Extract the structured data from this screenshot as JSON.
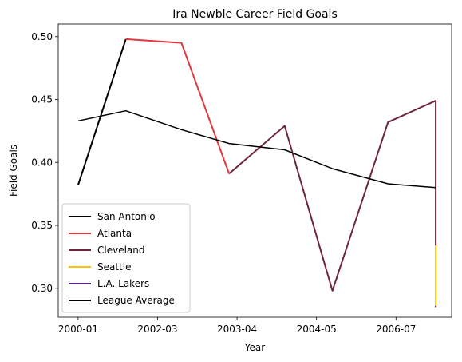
{
  "chart_data": {
    "type": "line",
    "title": "Ira Newble Career Field Goals",
    "xlabel": "Year",
    "ylabel": "Field Goals",
    "x_ticks": [
      "2000-01",
      "2002-03",
      "2003-04",
      "2004-05",
      "2006-07"
    ],
    "x_tick_positions": [
      0,
      2,
      3,
      4,
      5
    ],
    "xlim": [
      -0.25,
      4.7
    ],
    "ylim": [
      0.277,
      0.51
    ],
    "y_ticks": [
      0.3,
      0.35,
      0.4,
      0.45,
      0.5
    ],
    "y_tick_labels": [
      "0.30",
      "0.35",
      "0.40",
      "0.45",
      "0.50"
    ],
    "grid": false,
    "legend_position": "lower left",
    "series": [
      {
        "name": "San Antonio",
        "color": "#000000",
        "points": [
          [
            0,
            0.382
          ],
          [
            0.6,
            0.498
          ]
        ]
      },
      {
        "name": "Atlanta",
        "color": "#e03a3e",
        "points": [
          [
            0.6,
            0.498
          ],
          [
            1.3,
            0.495
          ],
          [
            1.9,
            0.391
          ]
        ]
      },
      {
        "name": "Cleveland",
        "color": "#6f263d",
        "points": [
          [
            1.9,
            0.391
          ],
          [
            2.6,
            0.429
          ],
          [
            3.2,
            0.298
          ],
          [
            3.9,
            0.432
          ],
          [
            4.5,
            0.449
          ],
          [
            4.5,
            0.334
          ]
        ]
      },
      {
        "name": "Seattle",
        "color": "#ffc200",
        "points": [
          [
            4.5,
            0.334
          ],
          [
            4.5,
            0.285
          ]
        ]
      },
      {
        "name": "L.A. Lakers",
        "color": "#552583",
        "points": [
          [
            4.5,
            0.285
          ],
          [
            4.5,
            0.286
          ]
        ]
      },
      {
        "name": "League Average",
        "color": "#000000",
        "thin": true,
        "points": [
          [
            0,
            0.433
          ],
          [
            0.6,
            0.441
          ],
          [
            1.3,
            0.426
          ],
          [
            1.9,
            0.415
          ],
          [
            2.6,
            0.41
          ],
          [
            3.2,
            0.395
          ],
          [
            3.9,
            0.383
          ],
          [
            4.5,
            0.38
          ]
        ]
      }
    ]
  }
}
